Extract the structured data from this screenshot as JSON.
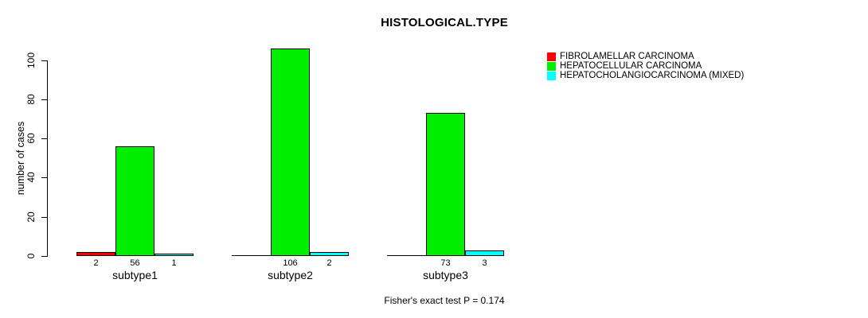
{
  "title": "HISTOLOGICAL.TYPE",
  "chart_data": {
    "type": "bar",
    "title": "HISTOLOGICAL.TYPE",
    "categories": [
      "subtype1",
      "subtype2",
      "subtype3"
    ],
    "series": [
      {
        "name": "FIBROLAMELLAR CARCINOMA",
        "color": "#ff0000",
        "values": [
          2,
          0,
          0
        ],
        "labels": [
          "2",
          "",
          ""
        ]
      },
      {
        "name": "HEPATOCELLULAR CARCINOMA",
        "color": "#00ee00",
        "values": [
          56,
          106,
          73
        ],
        "labels": [
          "56",
          "106",
          "73"
        ]
      },
      {
        "name": "HEPATOCHOLANGIOCARCINOMA (MIXED)",
        "color": "#00ffff",
        "values": [
          1,
          2,
          3
        ],
        "labels": [
          "1",
          "2",
          "3"
        ]
      }
    ],
    "ylabel": "number of cases",
    "xlabel": "",
    "y_ticks": [
      0,
      20,
      40,
      60,
      80,
      100
    ],
    "ylim": [
      0,
      106
    ],
    "grid": false,
    "legend_position": "top-right",
    "annotation": "Fisher's exact test P = 0.174",
    "bar_border_color": "#000000"
  }
}
